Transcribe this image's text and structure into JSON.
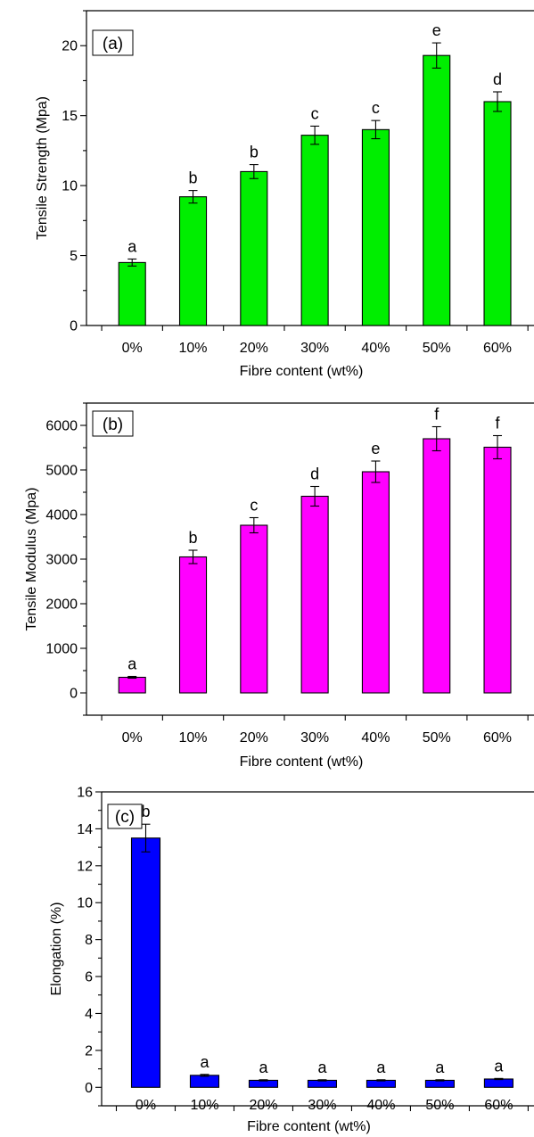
{
  "chart_data": [
    {
      "type": "bar",
      "panel_label": "(a)",
      "xlabel": "Fibre content (wt%)",
      "ylabel": "Tensile Strength (Mpa)",
      "categories": [
        "0%",
        "10%",
        "20%",
        "30%",
        "40%",
        "50%",
        "60%"
      ],
      "values": [
        4.5,
        9.2,
        11.0,
        13.6,
        14.0,
        19.3,
        16.0
      ],
      "errors": [
        0.25,
        0.45,
        0.5,
        0.65,
        0.65,
        0.9,
        0.7
      ],
      "group_letters": [
        "a",
        "b",
        "b",
        "c",
        "c",
        "e",
        "d"
      ],
      "ylim": [
        0,
        22.5
      ],
      "yticks": [
        0,
        5,
        10,
        15,
        20
      ],
      "yticks_minor_step": 2.5,
      "bar_color": "#00ee00",
      "grid": false,
      "legend": "none"
    },
    {
      "type": "bar",
      "panel_label": "(b)",
      "xlabel": "Fibre content (wt%)",
      "ylabel": "Tensile Modulus (Mpa)",
      "categories": [
        "0%",
        "10%",
        "20%",
        "30%",
        "40%",
        "50%",
        "60%"
      ],
      "values": [
        350,
        3050,
        3760,
        4410,
        4960,
        5700,
        5510
      ],
      "errors": [
        20,
        150,
        170,
        220,
        240,
        270,
        260
      ],
      "group_letters": [
        "a",
        "b",
        "c",
        "d",
        "e",
        "f",
        "f"
      ],
      "ylim": [
        -500,
        6500
      ],
      "yticks": [
        0,
        1000,
        2000,
        3000,
        4000,
        5000,
        6000
      ],
      "yticks_minor_step": 500,
      "bar_color": "#ff00ff",
      "grid": false,
      "legend": "none"
    },
    {
      "type": "bar",
      "panel_label": "(c)",
      "xlabel": "Fibre content (wt%)",
      "ylabel": "Elongation (%)",
      "categories": [
        "0%",
        "10%",
        "20%",
        "30%",
        "40%",
        "50%",
        "60%"
      ],
      "values": [
        13.5,
        0.65,
        0.38,
        0.38,
        0.38,
        0.38,
        0.45
      ],
      "errors": [
        0.75,
        0.05,
        0.03,
        0.03,
        0.03,
        0.03,
        0.03
      ],
      "group_letters": [
        "b",
        "a",
        "a",
        "a",
        "a",
        "a",
        "a"
      ],
      "ylim": [
        -1,
        16
      ],
      "yticks": [
        0,
        2,
        4,
        6,
        8,
        10,
        12,
        14,
        16
      ],
      "yticks_minor_step": 1,
      "bar_color": "#0000ff",
      "grid": false,
      "legend": "none"
    }
  ]
}
